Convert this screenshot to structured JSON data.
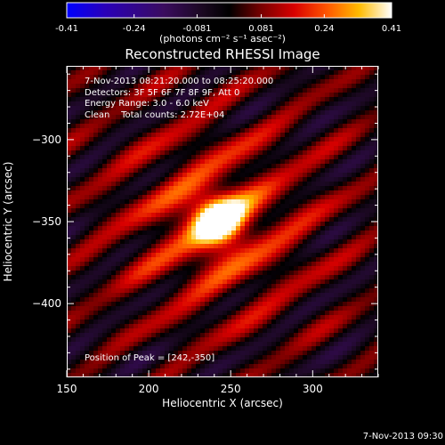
{
  "colorbar": {
    "tick_labels": [
      "-0.41",
      "-0.24",
      "-0.081",
      "0.081",
      "0.24",
      "0.41"
    ],
    "tick_values": [
      -0.41,
      -0.24,
      -0.081,
      0.081,
      0.24,
      0.41
    ],
    "range": [
      -0.41,
      0.41
    ],
    "units_label": "(photons cm⁻² s⁻¹ asec⁻²)"
  },
  "title": "Reconstructed RHESSI Image",
  "info": {
    "time_range": "7-Nov-2013 08:21:20.000 to 08:25:20.000",
    "detectors": "Detectors: 3F 5F 6F 7F 8F 9F, Att 0",
    "energy": "Energy Range: 3.0 - 6.0 keV",
    "method": "Clean",
    "counts": "Total counts: 2.72E+04",
    "peak": "Position of Peak = [242,-350]"
  },
  "timestamp": "7-Nov-2013 09:30",
  "chart_data": {
    "type": "heatmap",
    "title": "Reconstructed RHESSI Image",
    "xlabel": "Heliocentric X (arcsec)",
    "ylabel": "Heliocentric Y (arcsec)",
    "xlim": [
      150,
      340
    ],
    "ylim": [
      -445,
      -255
    ],
    "x_ticks": [
      150,
      200,
      250,
      300
    ],
    "y_ticks": [
      -300,
      -350,
      -400
    ],
    "colorbar_range": [
      -0.41,
      0.41
    ],
    "colormap": "black-purple-red-orange-yellow-white",
    "peak_position": [
      242,
      -350
    ],
    "peak_value": 0.41
  }
}
